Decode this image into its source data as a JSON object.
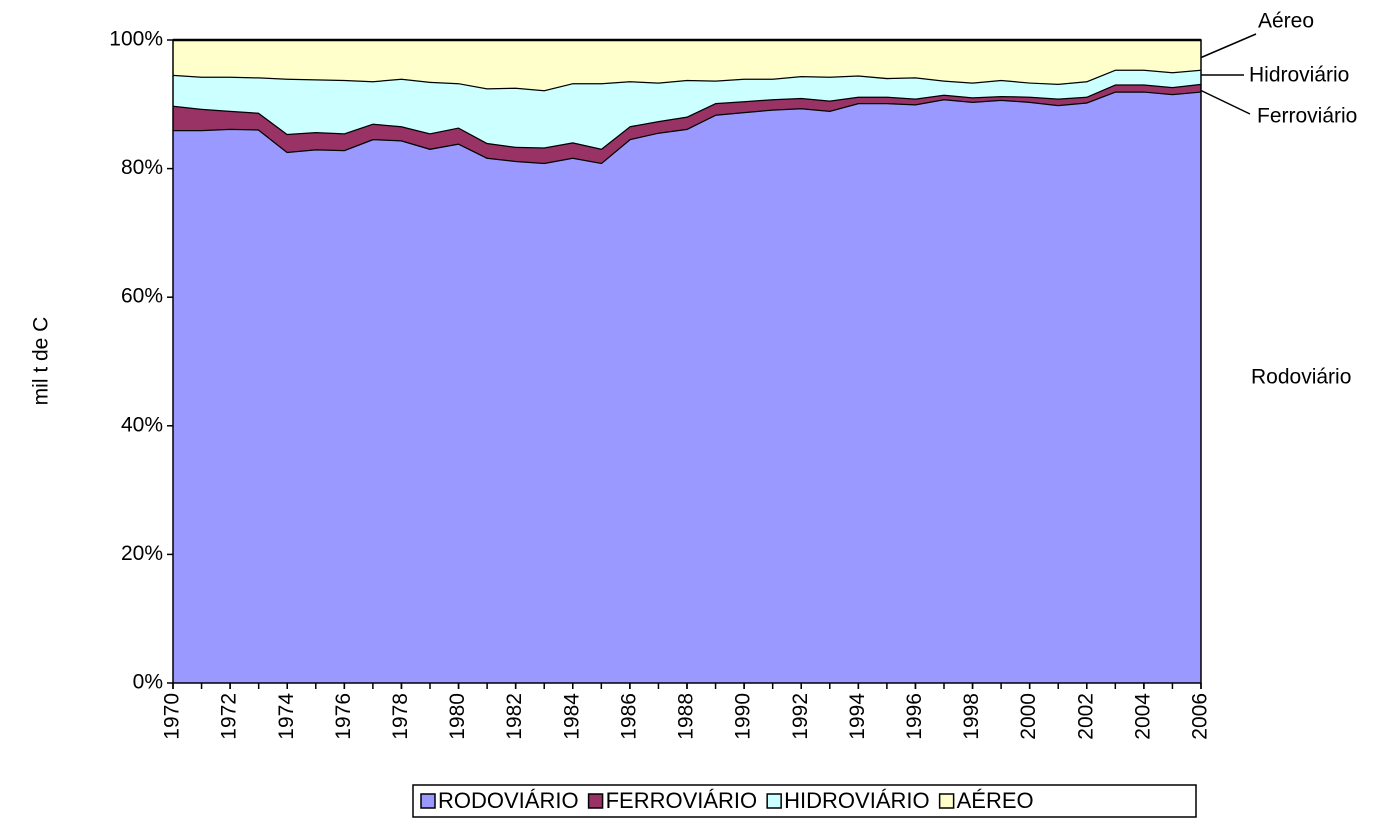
{
  "chart_data": {
    "type": "stacked_area",
    "y_axis_label": "mil t de C",
    "x": [
      1970,
      1971,
      1972,
      1973,
      1974,
      1975,
      1976,
      1977,
      1978,
      1979,
      1980,
      1981,
      1982,
      1983,
      1984,
      1985,
      1986,
      1987,
      1988,
      1989,
      1990,
      1991,
      1992,
      1993,
      1994,
      1995,
      1996,
      1997,
      1998,
      1999,
      2000,
      2001,
      2002,
      2003,
      2004,
      2005,
      2006
    ],
    "xlim": [
      1970,
      2006
    ],
    "xticks": [
      1970,
      1972,
      1974,
      1976,
      1978,
      1980,
      1982,
      1984,
      1986,
      1988,
      1990,
      1992,
      1994,
      1996,
      1998,
      2000,
      2002,
      2004,
      2006
    ],
    "ylim": [
      0,
      100
    ],
    "yticks": [
      {
        "value": 0,
        "label": "0%"
      },
      {
        "value": 20,
        "label": "20%"
      },
      {
        "value": 40,
        "label": "40%"
      },
      {
        "value": 60,
        "label": "60%"
      },
      {
        "value": 80,
        "label": "80%"
      },
      {
        "value": 100,
        "label": "100%"
      }
    ],
    "series": [
      {
        "name": "RODOVIÁRIO",
        "color": "#9999ff",
        "values": [
          86,
          86,
          86.2,
          86.1,
          82.6,
          83,
          82.9,
          84.6,
          84.4,
          83.1,
          83.9,
          81.7,
          81.2,
          80.9,
          81.7,
          80.9,
          84.6,
          85.6,
          86.2,
          88.4,
          88.8,
          89.2,
          89.4,
          89,
          90.2,
          90.2,
          90,
          90.8,
          90.4,
          90.7,
          90.4,
          89.9,
          90.3,
          92,
          92,
          91.6,
          92
        ]
      },
      {
        "name": "FERROVIÁRIO",
        "color": "#993366",
        "values": [
          3.8,
          3.3,
          2.8,
          2.6,
          2.8,
          2.7,
          2.6,
          2.4,
          2.2,
          2.4,
          2.5,
          2.3,
          2.2,
          2.4,
          2.4,
          2.2,
          2.0,
          1.8,
          1.9,
          1.8,
          1.7,
          1.6,
          1.6,
          1.6,
          1.0,
          1.0,
          0.9,
          0.7,
          0.7,
          0.6,
          0.8,
          1.0,
          0.9,
          1.1,
          1.1,
          1.1,
          1.2
        ]
      },
      {
        "name": "HIDROVIÁRIO",
        "color": "#ccffff",
        "values": [
          4.8,
          5.0,
          5.3,
          5.5,
          8.6,
          8.2,
          8.3,
          6.6,
          7.4,
          8.0,
          6.9,
          8.5,
          9.2,
          8.9,
          9.2,
          10.2,
          7.0,
          6.0,
          5.7,
          3.5,
          3.5,
          3.2,
          3.4,
          3.7,
          3.3,
          2.9,
          3.3,
          2.2,
          2.3,
          2.5,
          2.2,
          2.3,
          2.4,
          2.3,
          2.3,
          2.3,
          2.2
        ]
      },
      {
        "name": "AÉREO",
        "color": "#ffffcc",
        "values": [
          5.4,
          5.7,
          5.7,
          5.8,
          6.0,
          6.1,
          6.2,
          6.4,
          6.0,
          6.5,
          6.7,
          7.5,
          7.4,
          7.8,
          6.7,
          6.7,
          6.4,
          6.6,
          6.2,
          6.3,
          6.0,
          6.0,
          5.6,
          5.7,
          5.5,
          5.9,
          5.8,
          6.3,
          6.6,
          6.2,
          6.6,
          6.8,
          6.4,
          4.6,
          4.6,
          5.0,
          4.6
        ]
      }
    ],
    "annotations": [
      "Aéreo",
      "Hidroviário",
      "Ferroviário",
      "Rodoviário"
    ]
  }
}
